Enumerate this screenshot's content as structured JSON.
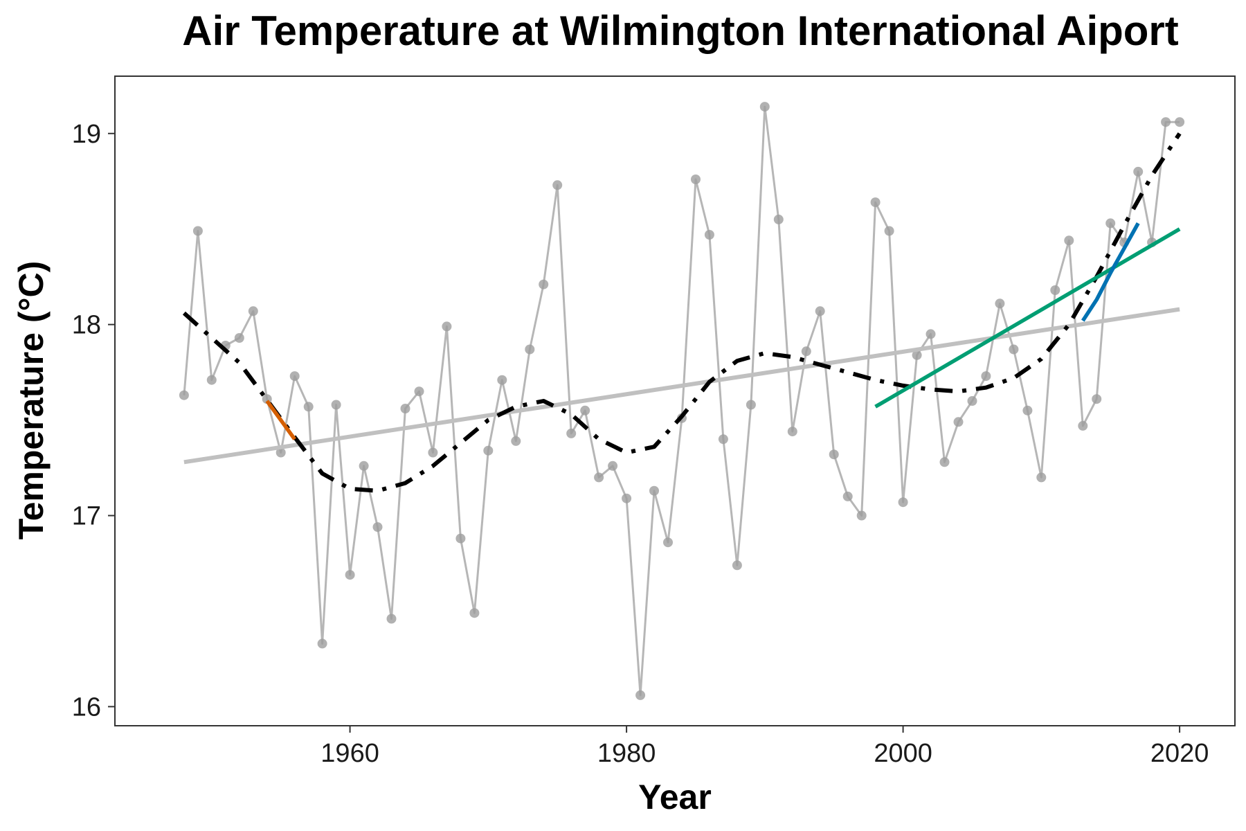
{
  "chart_data": {
    "type": "line",
    "title": "Air Temperature at Wilmington International Aiport",
    "xlabel": "Year",
    "ylabel": "Temperature (°C)",
    "xlim": [
      1943,
      2024
    ],
    "ylim": [
      15.9,
      19.3
    ],
    "xticks": [
      1960,
      1980,
      2000,
      2020
    ],
    "yticks": [
      16,
      17,
      18,
      19
    ],
    "grid": false,
    "legend": "none",
    "series": [
      {
        "kind": "observed",
        "color": "#9e9e9e",
        "x": [
          1948,
          1949,
          1950,
          1951,
          1952,
          1953,
          1954,
          1955,
          1956,
          1957,
          1958,
          1959,
          1960,
          1961,
          1962,
          1963,
          1964,
          1965,
          1966,
          1967,
          1968,
          1969,
          1970,
          1971,
          1972,
          1973,
          1974,
          1975,
          1976,
          1977,
          1978,
          1979,
          1980,
          1981,
          1982,
          1983,
          1984,
          1985,
          1986,
          1987,
          1988,
          1989,
          1990,
          1991,
          1992,
          1993,
          1994,
          1995,
          1996,
          1997,
          1998,
          1999,
          2000,
          2001,
          2002,
          2003,
          2004,
          2005,
          2006,
          2007,
          2008,
          2009,
          2010,
          2011,
          2012,
          2013,
          2014,
          2015,
          2016,
          2017,
          2018,
          2019,
          2020
        ],
        "y": [
          17.63,
          18.49,
          17.71,
          17.89,
          17.93,
          18.07,
          17.61,
          17.33,
          17.73,
          17.57,
          16.33,
          17.58,
          16.69,
          17.26,
          16.94,
          16.46,
          17.56,
          17.65,
          17.33,
          17.99,
          16.88,
          16.49,
          17.34,
          17.71,
          17.39,
          17.87,
          18.21,
          18.73,
          17.43,
          17.55,
          17.2,
          17.26,
          17.09,
          16.06,
          17.13,
          16.86,
          17.51,
          18.76,
          18.47,
          17.4,
          16.74,
          17.58,
          19.14,
          18.55,
          17.44,
          17.86,
          18.07,
          17.32,
          17.1,
          17.0,
          18.64,
          18.49,
          17.07,
          17.84,
          17.95,
          17.28,
          17.49,
          17.6,
          17.73,
          18.11,
          17.87,
          17.55,
          17.2,
          18.18,
          18.44,
          17.47,
          17.61,
          18.53,
          18.43,
          18.8,
          18.43,
          19.06,
          19.06
        ]
      },
      {
        "kind": "long-term-trend",
        "color": "#c0c0c0",
        "x": [
          1948,
          2020
        ],
        "y": [
          17.28,
          18.08
        ]
      },
      {
        "kind": "smooth",
        "color": "#000000",
        "x": [
          1948,
          1952,
          1956,
          1958,
          1960,
          1962,
          1964,
          1966,
          1968,
          1970,
          1972,
          1974,
          1976,
          1978,
          1980,
          1982,
          1984,
          1986,
          1988,
          1990,
          1992,
          1994,
          1996,
          1998,
          2000,
          2002,
          2004,
          2006,
          2008,
          2010,
          2012,
          2014,
          2016,
          2018,
          2020
        ],
        "y": [
          18.06,
          17.8,
          17.41,
          17.22,
          17.14,
          17.13,
          17.17,
          17.26,
          17.38,
          17.5,
          17.57,
          17.6,
          17.53,
          17.4,
          17.33,
          17.36,
          17.52,
          17.7,
          17.81,
          17.85,
          17.83,
          17.79,
          17.75,
          17.71,
          17.68,
          17.66,
          17.65,
          17.67,
          17.72,
          17.82,
          18.0,
          18.25,
          18.52,
          18.78,
          19.0
        ]
      },
      {
        "kind": "segment",
        "color": "#d55e00",
        "x": [
          1954,
          1956
        ],
        "y": [
          17.6,
          17.4
        ]
      },
      {
        "kind": "segment",
        "color": "#009e73",
        "x": [
          1998,
          2020
        ],
        "y": [
          17.57,
          18.5
        ]
      },
      {
        "kind": "segment",
        "color": "#0072b2",
        "x": [
          2013,
          2014,
          2015,
          2016,
          2017
        ],
        "y": [
          18.02,
          18.13,
          18.27,
          18.4,
          18.53
        ]
      }
    ]
  }
}
